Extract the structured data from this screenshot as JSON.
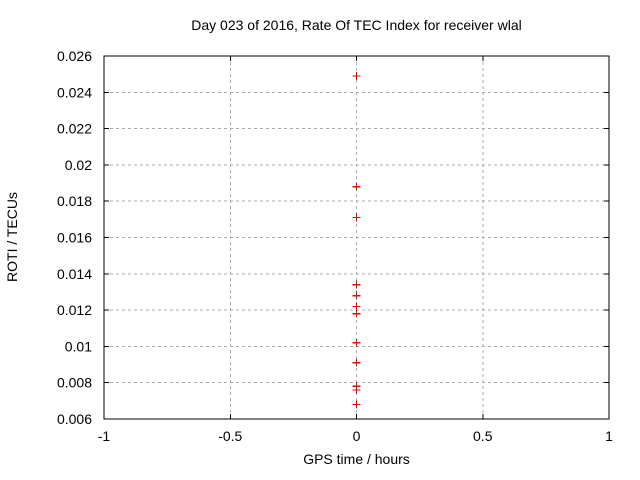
{
  "chart_data": {
    "type": "scatter",
    "title": "Day 023 of 2016, Rate Of TEC Index for receiver wlal",
    "xlabel": "GPS time / hours",
    "ylabel": "ROTI / TECUs",
    "xlim": [
      -1,
      1
    ],
    "ylim": [
      0.006,
      0.026
    ],
    "xticks": {
      "values": [
        -1,
        -0.5,
        0,
        0.5,
        1
      ],
      "labels": [
        "-1",
        "-0.5",
        "0",
        "0.5",
        "1"
      ]
    },
    "yticks": {
      "values": [
        0.006,
        0.008,
        0.01,
        0.012,
        0.014,
        0.016,
        0.018,
        0.02,
        0.022,
        0.024,
        0.026
      ],
      "labels": [
        "0.006",
        "0.008",
        "0.01",
        "0.012",
        "0.014",
        "0.016",
        "0.018",
        "0.02",
        "0.022",
        "0.024",
        "0.026"
      ]
    },
    "grid": true,
    "legend": "none",
    "series": [
      {
        "name": "ROTI",
        "marker": "plus",
        "color": "#ee0000",
        "points": [
          {
            "x": 0,
            "y": 0.0249
          },
          {
            "x": 0,
            "y": 0.0188
          },
          {
            "x": 0,
            "y": 0.0171
          },
          {
            "x": 0,
            "y": 0.0134
          },
          {
            "x": 0,
            "y": 0.0128
          },
          {
            "x": 0,
            "y": 0.0122
          },
          {
            "x": 0,
            "y": 0.0118
          },
          {
            "x": 0,
            "y": 0.0102
          },
          {
            "x": 0,
            "y": 0.0091
          },
          {
            "x": 0,
            "y": 0.0078
          },
          {
            "x": 0,
            "y": 0.0076
          },
          {
            "x": 0,
            "y": 0.0068
          }
        ]
      }
    ]
  },
  "style": {
    "background": "#ffffff",
    "axis_color": "#000000",
    "grid_color": "#ababab",
    "text_color": "#000000"
  }
}
